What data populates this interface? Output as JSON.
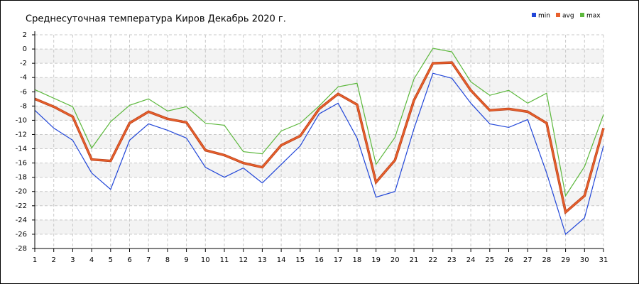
{
  "chart_data": {
    "type": "line",
    "title": "Среднесуточная температура Киров  Декабрь 2020 г.",
    "x": [
      1,
      2,
      3,
      4,
      5,
      6,
      7,
      8,
      9,
      10,
      11,
      12,
      13,
      14,
      15,
      16,
      17,
      18,
      19,
      20,
      21,
      22,
      23,
      24,
      25,
      26,
      27,
      28,
      29,
      30,
      31
    ],
    "xlim": [
      1,
      31
    ],
    "xticks": [
      1,
      2,
      3,
      4,
      5,
      6,
      7,
      8,
      9,
      10,
      11,
      12,
      13,
      14,
      15,
      16,
      17,
      18,
      19,
      20,
      21,
      22,
      23,
      24,
      25,
      26,
      27,
      28,
      29,
      30,
      31
    ],
    "ylim": [
      -28,
      2
    ],
    "yticks": [
      2,
      0,
      -2,
      -4,
      -6,
      -8,
      -10,
      -12,
      -14,
      -16,
      -18,
      -20,
      -22,
      -24,
      -26,
      -28
    ],
    "grid": true,
    "legend": "top-right",
    "series": [
      {
        "name": "min",
        "color": "#2146d8",
        "values": [
          -8.6,
          -11.1,
          -12.8,
          -17.4,
          -19.7,
          -12.8,
          -10.5,
          -11.4,
          -12.5,
          -16.6,
          -18.0,
          -16.7,
          -18.8,
          -16.2,
          -13.6,
          -9.1,
          -7.6,
          -12.5,
          -20.8,
          -20.0,
          -11.2,
          -3.4,
          -4.1,
          -7.6,
          -10.5,
          -11.0,
          -9.9,
          -17.4,
          -26.0,
          -23.7,
          -13.6
        ]
      },
      {
        "name": "avg",
        "color": "#e8602c",
        "values": [
          -7.0,
          -8.1,
          -9.5,
          -15.5,
          -15.7,
          -10.4,
          -8.8,
          -9.8,
          -10.3,
          -14.2,
          -14.9,
          -16.0,
          -16.6,
          -13.5,
          -12.2,
          -8.4,
          -6.3,
          -7.8,
          -18.7,
          -15.6,
          -7.2,
          -2.0,
          -1.9,
          -5.8,
          -8.6,
          -8.4,
          -8.8,
          -10.4,
          -22.9,
          -20.6,
          -11.1
        ]
      },
      {
        "name": "max",
        "color": "#5cb83c",
        "values": [
          -5.7,
          -6.9,
          -8.1,
          -13.9,
          -10.2,
          -7.9,
          -7.0,
          -8.7,
          -8.1,
          -10.4,
          -10.7,
          -14.4,
          -14.7,
          -11.5,
          -10.4,
          -8.0,
          -5.3,
          -4.8,
          -16.2,
          -12.4,
          -4.2,
          0.1,
          -0.4,
          -4.6,
          -6.5,
          -5.8,
          -7.6,
          -6.2,
          -20.6,
          -16.5,
          -9.2
        ]
      }
    ]
  }
}
